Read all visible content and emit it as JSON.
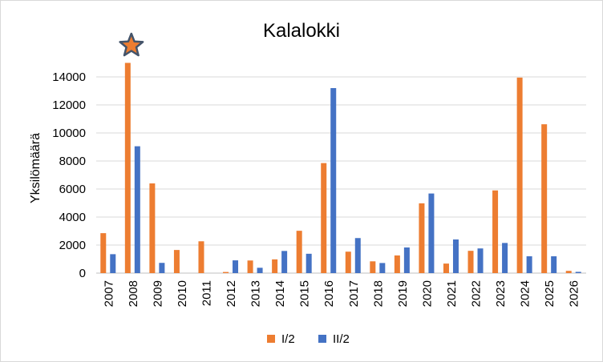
{
  "chart_data": {
    "type": "bar",
    "title": "Kalalokki",
    "ylabel": "Yksilömäärä",
    "xlabel": "",
    "ylim": [
      0,
      15000
    ],
    "yticks": [
      0,
      2000,
      4000,
      6000,
      8000,
      10000,
      12000,
      14000
    ],
    "gridlines": true,
    "legend_position": "bottom",
    "categories": [
      "2007",
      "2008",
      "2009",
      "2010",
      "2011",
      "2012",
      "2013",
      "2014",
      "2015",
      "2016",
      "2017",
      "2018",
      "2019",
      "2020",
      "2021",
      "2022",
      "2023",
      "2024",
      "2025",
      "2026"
    ],
    "series": [
      {
        "name": "I/2",
        "color": "#ED7D31",
        "values": [
          2850,
          15000,
          6400,
          1650,
          2270,
          80,
          900,
          980,
          3020,
          7850,
          1530,
          840,
          1260,
          4980,
          680,
          1590,
          5900,
          13950,
          10620,
          160
        ]
      },
      {
        "name": "II/2",
        "color": "#4472C4",
        "values": [
          1350,
          9050,
          730,
          0,
          0,
          910,
          380,
          1580,
          1380,
          13200,
          2500,
          720,
          1830,
          5680,
          2400,
          1760,
          2150,
          1200,
          1200,
          90
        ]
      }
    ],
    "annotation": {
      "type": "star",
      "category": "2008",
      "fill": "#ED7D31",
      "stroke": "#44546A"
    }
  }
}
